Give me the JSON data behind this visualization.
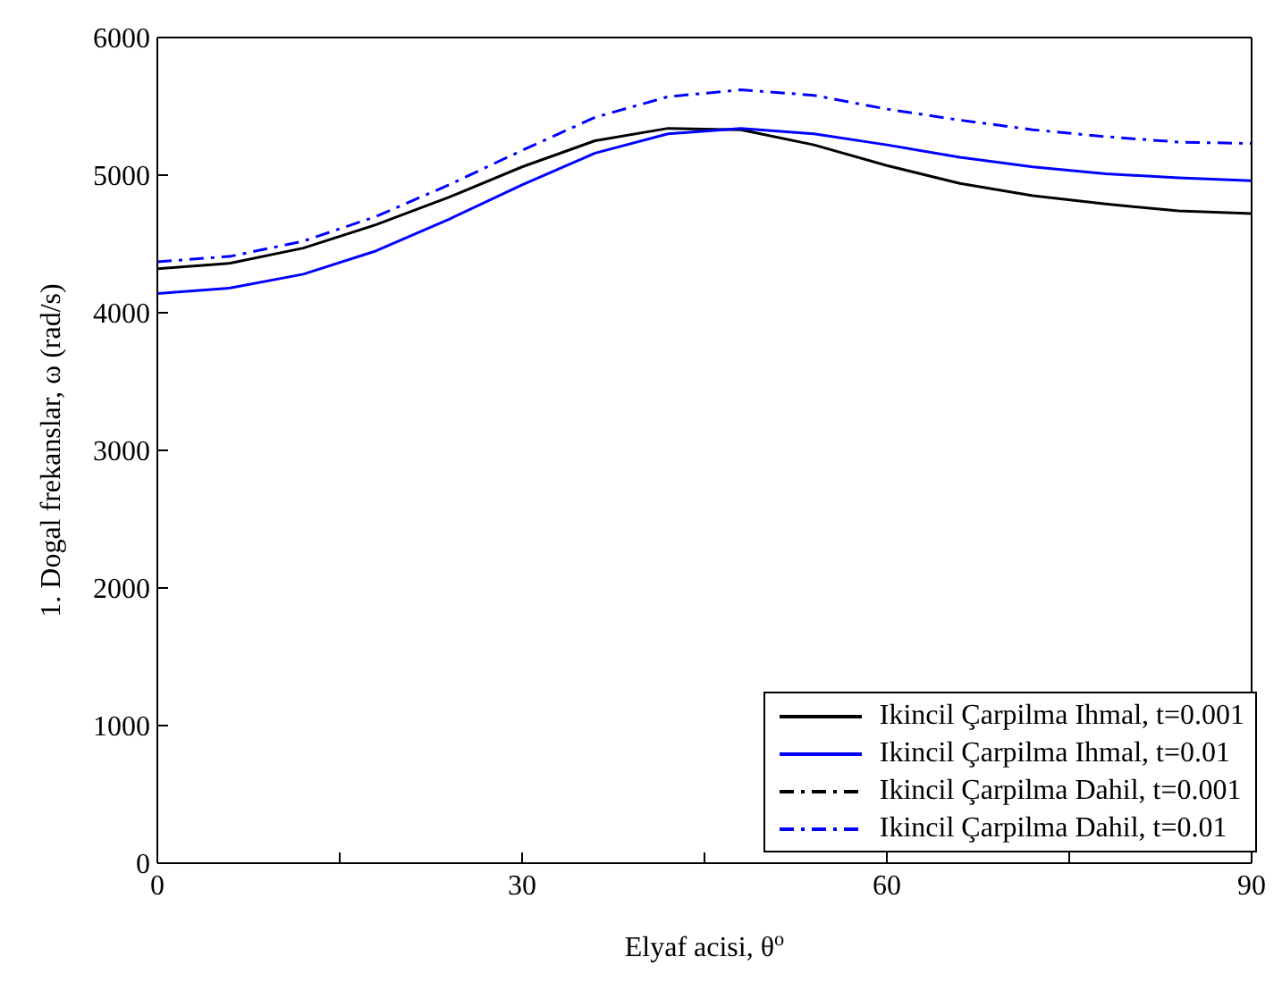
{
  "chart_data": {
    "type": "line",
    "xlabel": "Elyaf acisi, θ$^{o}$",
    "ylabel": "1. Dogal frekanslar, ω (rad/s)",
    "x": [
      0,
      6,
      12,
      18,
      24,
      30,
      36,
      42,
      48,
      54,
      60,
      66,
      72,
      78,
      84,
      90
    ],
    "xlim": [
      0,
      90
    ],
    "xticks": [
      0,
      {
        "value": 15,
        "label": null
      },
      30,
      {
        "value": 45,
        "label": null
      },
      60,
      {
        "value": 75,
        "label": null
      },
      90
    ],
    "ylim": [
      0,
      6000
    ],
    "yticks": [
      0,
      1000,
      2000,
      3000,
      4000,
      5000,
      6000
    ],
    "legend": "bottom right",
    "marker": "none",
    "series": [
      {
        "name": "Ikincil Çarpilma Ihmal, t=0.001",
        "color": "#000000",
        "line_style": "solid",
        "values": [
          4320,
          4360,
          4470,
          4640,
          4840,
          5060,
          5250,
          5340,
          5330,
          5220,
          5070,
          4940,
          4850,
          4790,
          4740,
          4720
        ]
      },
      {
        "name": "Ikincil Çarpilma Ihmal, t=0.01",
        "color": "#0000ff",
        "line_style": "solid",
        "values": [
          4140,
          4180,
          4280,
          4450,
          4680,
          4930,
          5160,
          5300,
          5340,
          5300,
          5220,
          5130,
          5060,
          5010,
          4980,
          4960
        ]
      },
      {
        "name": "Ikincil Çarpilma Dahil, t=0.001",
        "color": "#000000",
        "line_style": "dashdot",
        "values": [
          null,
          null,
          null,
          null,
          null,
          null,
          null,
          null,
          null,
          null,
          null,
          null,
          null,
          null,
          null,
          null
        ]
      },
      {
        "name": "Ikincil Çarpilma Dahil, t=0.01",
        "color": "#0000ff",
        "line_style": "dashdot",
        "values": [
          4370,
          4410,
          4520,
          4700,
          4930,
          5180,
          5420,
          5570,
          5620,
          5580,
          5480,
          5400,
          5330,
          5280,
          5240,
          5230
        ]
      }
    ]
  }
}
